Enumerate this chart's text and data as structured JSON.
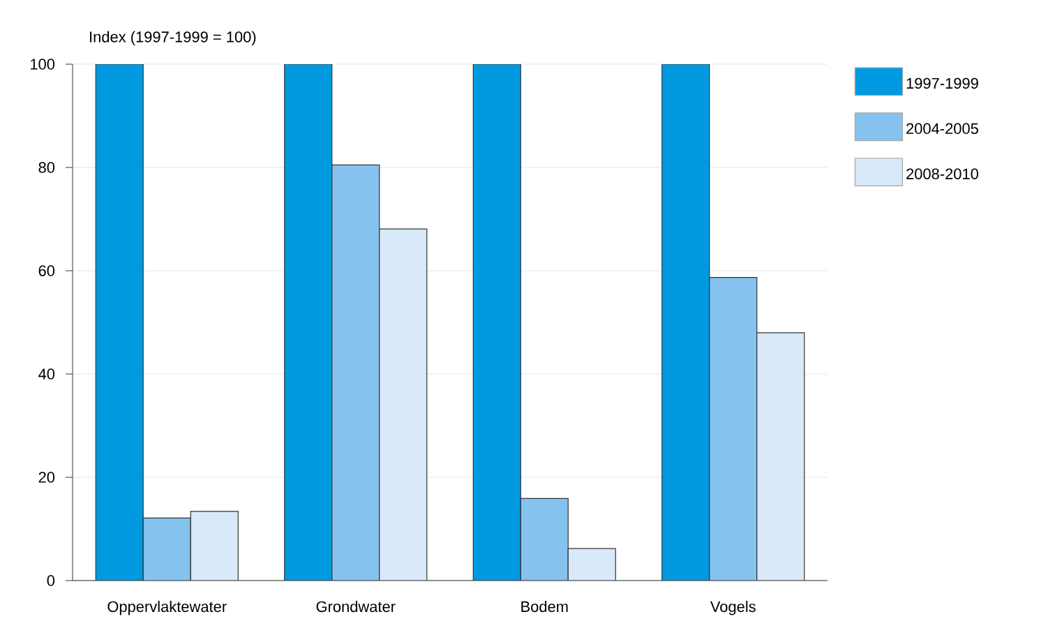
{
  "chart_data": {
    "type": "bar",
    "ylabel": "Index (1997-1999 = 100)",
    "categories": [
      "Oppervlaktewater",
      "Grondwater",
      "Bodem",
      "Vogels"
    ],
    "series": [
      {
        "name": "1997-1999",
        "color": "#009ae0",
        "values": [
          100,
          100,
          100,
          100
        ]
      },
      {
        "name": "2004-2005",
        "color": "#85c2ee",
        "values": [
          12.1,
          80.5,
          15.9,
          58.7
        ]
      },
      {
        "name": "2008-2010",
        "color": "#d9e9f9",
        "values": [
          13.4,
          68.1,
          6.2,
          48.0
        ]
      }
    ],
    "ylim": [
      0,
      100
    ],
    "yticks": [
      0,
      20,
      40,
      60,
      80,
      100
    ],
    "grid": "y",
    "legend": "top right"
  }
}
